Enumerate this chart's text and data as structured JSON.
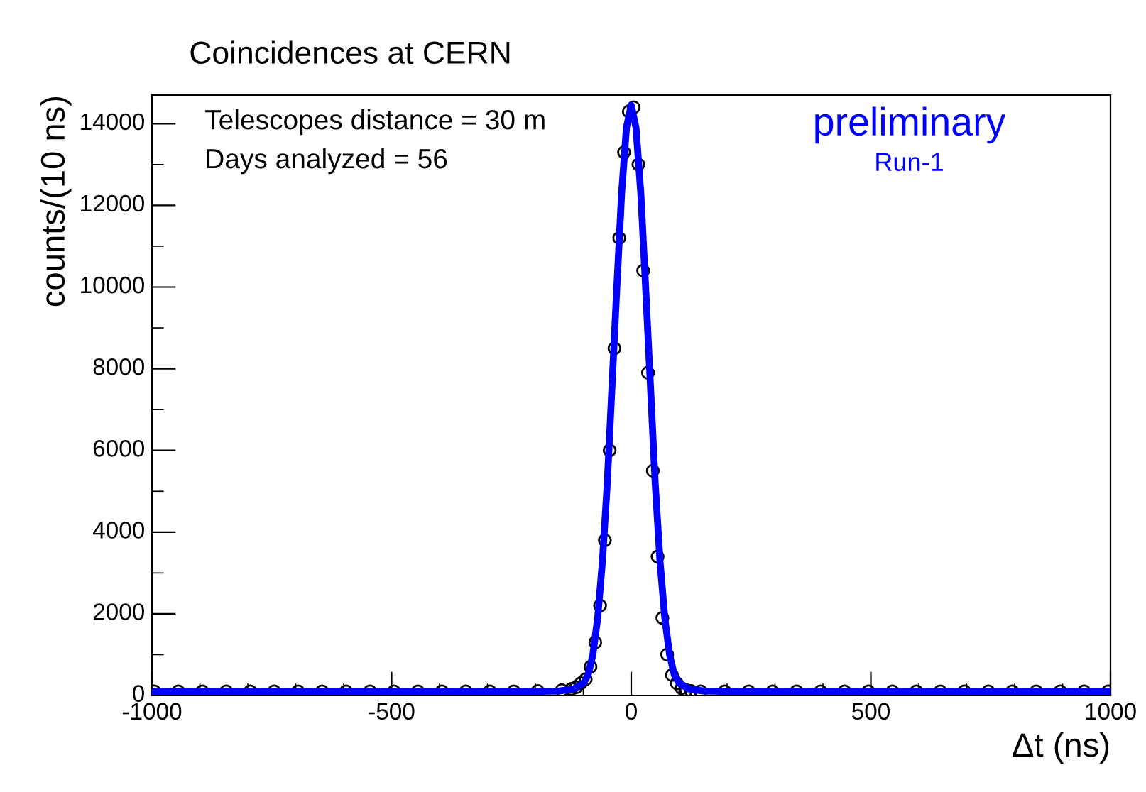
{
  "chart_data": {
    "type": "scatter",
    "title": "Coincidences at CERN",
    "xlabel": "Δt (ns)",
    "ylabel": "counts/(10 ns)",
    "annotations": [
      "Telescopes distance = 30 m",
      "Days analyzed = 56",
      "preliminary",
      "Run-1"
    ],
    "xlim": [
      -1000,
      1000
    ],
    "ylim": [
      0,
      14700
    ],
    "xticks": [
      -1000,
      -500,
      0,
      500,
      1000
    ],
    "yticks": [
      0,
      2000,
      4000,
      6000,
      8000,
      10000,
      12000,
      14000
    ],
    "grid": false,
    "legend": false,
    "series": [
      {
        "color": "#000000",
        "marker": "circle",
        "x": [
          -995,
          -945,
          -895,
          -845,
          -795,
          -745,
          -695,
          -645,
          -595,
          -545,
          -495,
          -445,
          -395,
          -345,
          -295,
          -245,
          -195,
          -145,
          -125,
          -115,
          -105,
          -95,
          -85,
          -75,
          -65,
          -55,
          -45,
          -35,
          -25,
          -15,
          -5,
          5,
          15,
          25,
          35,
          45,
          55,
          65,
          75,
          85,
          95,
          105,
          115,
          125,
          145,
          195,
          245,
          295,
          345,
          395,
          445,
          495,
          545,
          595,
          645,
          695,
          745,
          795,
          845,
          895,
          945,
          995
        ],
        "values": [
          100,
          100,
          100,
          100,
          100,
          100,
          100,
          100,
          100,
          100,
          100,
          100,
          100,
          100,
          100,
          100,
          110,
          130,
          160,
          200,
          300,
          400,
          700,
          1300,
          2200,
          3800,
          6000,
          8500,
          11200,
          13300,
          14300,
          14400,
          13000,
          10400,
          7900,
          5500,
          3400,
          1900,
          1000,
          500,
          300,
          180,
          130,
          110,
          100,
          100,
          100,
          100,
          100,
          100,
          100,
          100,
          100,
          100,
          100,
          100,
          100,
          100,
          100,
          100,
          100,
          100
        ]
      },
      {
        "type": "line",
        "color": "#0000ff",
        "line_style": "solid",
        "x": [
          -1000,
          -200,
          -150,
          -120,
          -100,
          -90,
          -80,
          -70,
          -60,
          -50,
          -40,
          -30,
          -20,
          -10,
          0,
          10,
          20,
          30,
          40,
          50,
          60,
          70,
          80,
          90,
          100,
          120,
          150,
          200,
          1000
        ],
        "values": [
          100,
          100,
          110,
          160,
          300,
          500,
          1000,
          1900,
          3300,
          5200,
          7600,
          10000,
          12300,
          13900,
          14450,
          13900,
          12300,
          10000,
          7600,
          5200,
          3300,
          1900,
          1000,
          500,
          300,
          160,
          110,
          100,
          100
        ]
      }
    ]
  }
}
